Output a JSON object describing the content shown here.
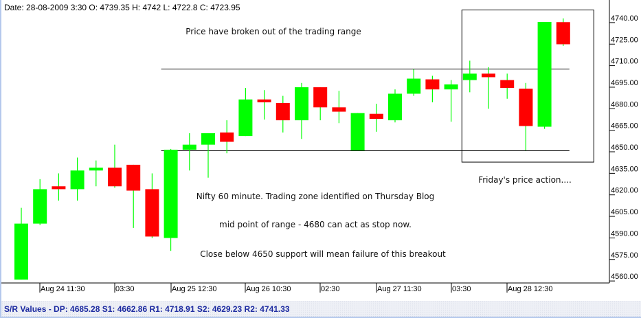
{
  "header": {
    "ohlc_readout": "Date: 28-08-2009 3:30 O: 4739.35 H: 4742 L: 4722.8 C: 4723.95"
  },
  "status_bar": {
    "sr_values": "S/R Values - DP: 4685.28 S1: 4662.86 R1: 4718.91 S2: 4629.23 R2: 4741.33"
  },
  "colors": {
    "up": "#00ff00",
    "down": "#ff0000",
    "lines": "#000000",
    "status_text": "#1c2aa0"
  },
  "chart_data": {
    "type": "candlestick",
    "title": "",
    "ylim": [
      4558,
      4749
    ],
    "y_ticks": [
      "4740.00",
      "4725.00",
      "4710.00",
      "4695.00",
      "4680.00",
      "4665.00",
      "4650.00",
      "4635.00",
      "4620.00",
      "4605.00",
      "4590.00",
      "4575.00",
      "4560.00"
    ],
    "x_tick_labels": [
      {
        "candle": 1,
        "label": "Aug 24 11:30"
      },
      {
        "candle": 5,
        "label": "03:30"
      },
      {
        "candle": 8,
        "label": "Aug 25 12:30"
      },
      {
        "candle": 12,
        "label": "Aug 26 10:30"
      },
      {
        "candle": 16,
        "label": "02:30"
      },
      {
        "candle": 19,
        "label": "Aug 27 11:30"
      },
      {
        "candle": 23,
        "label": "03:30"
      },
      {
        "candle": 26,
        "label": "Aug 28 12:30"
      }
    ],
    "candles": [
      {
        "o": 4560,
        "h": 4610,
        "l": 4560,
        "c": 4599
      },
      {
        "o": 4599,
        "h": 4630,
        "l": 4598,
        "c": 4623
      },
      {
        "o": 4625,
        "h": 4634,
        "l": 4615,
        "c": 4623
      },
      {
        "o": 4623,
        "h": 4645,
        "l": 4615,
        "c": 4636
      },
      {
        "o": 4636,
        "h": 4643,
        "l": 4625,
        "c": 4638
      },
      {
        "o": 4638,
        "h": 4654,
        "l": 4624,
        "c": 4625
      },
      {
        "o": 4640,
        "h": 4640,
        "l": 4596,
        "c": 4622
      },
      {
        "o": 4623,
        "h": 4634,
        "l": 4589,
        "c": 4590
      },
      {
        "o": 4589,
        "h": 4651,
        "l": 4580,
        "c": 4650.5
      },
      {
        "o": 4650.5,
        "h": 4662,
        "l": 4636,
        "c": 4654
      },
      {
        "o": 4654,
        "h": 4662,
        "l": 4631,
        "c": 4662
      },
      {
        "o": 4662.5,
        "h": 4671,
        "l": 4648,
        "c": 4656
      },
      {
        "o": 4660,
        "h": 4693.5,
        "l": 4660,
        "c": 4685.5
      },
      {
        "o": 4685.5,
        "h": 4692,
        "l": 4671.5,
        "c": 4683.5
      },
      {
        "o": 4683,
        "h": 4688,
        "l": 4662.5,
        "c": 4671
      },
      {
        "o": 4671,
        "h": 4697,
        "l": 4658,
        "c": 4694
      },
      {
        "o": 4694,
        "h": 4694,
        "l": 4671,
        "c": 4680
      },
      {
        "o": 4680,
        "h": 4691.5,
        "l": 4669,
        "c": 4677
      },
      {
        "o": 4650,
        "h": 4676,
        "l": 4650,
        "c": 4676
      },
      {
        "o": 4675.5,
        "h": 4682.5,
        "l": 4663,
        "c": 4672
      },
      {
        "o": 4671,
        "h": 4692.5,
        "l": 4669.5,
        "c": 4689.5
      },
      {
        "o": 4689.5,
        "h": 4706.5,
        "l": 4688,
        "c": 4700
      },
      {
        "o": 4699.5,
        "h": 4702,
        "l": 4683.5,
        "c": 4692.5
      },
      {
        "o": 4692.5,
        "h": 4699,
        "l": 4670,
        "c": 4696
      },
      {
        "o": 4699,
        "h": 4712.5,
        "l": 4690.5,
        "c": 4703.5
      },
      {
        "o": 4703.5,
        "h": 4708,
        "l": 4679,
        "c": 4701
      },
      {
        "o": 4699,
        "h": 4703.5,
        "l": 4686,
        "c": 4693.5
      },
      {
        "o": 4693,
        "h": 4697,
        "l": 4650,
        "c": 4667
      },
      {
        "o": 4666.5,
        "h": 4739.5,
        "l": 4665,
        "c": 4739.5
      },
      {
        "o": 4739.35,
        "h": 4742,
        "l": 4722.8,
        "c": 4723.95
      }
    ],
    "horizontal_lines": [
      {
        "price": 4707,
        "from_candle": 8,
        "to_candle": 29
      },
      {
        "price": 4650,
        "from_candle": 8,
        "to_candle": 29
      }
    ],
    "highlight_box": {
      "from_candle": 24,
      "to_candle": 30,
      "price_top": 4748,
      "price_bottom": 4642
    },
    "annotations": [
      "Price have broken out of the trading range",
      "Friday's price action....",
      "Nifty 60 minute. Trading zone identified on Thursday Blog",
      "mid point of range - 4680 can act as stop now.",
      "Close below 4650 support will mean failure of this breakout"
    ]
  }
}
